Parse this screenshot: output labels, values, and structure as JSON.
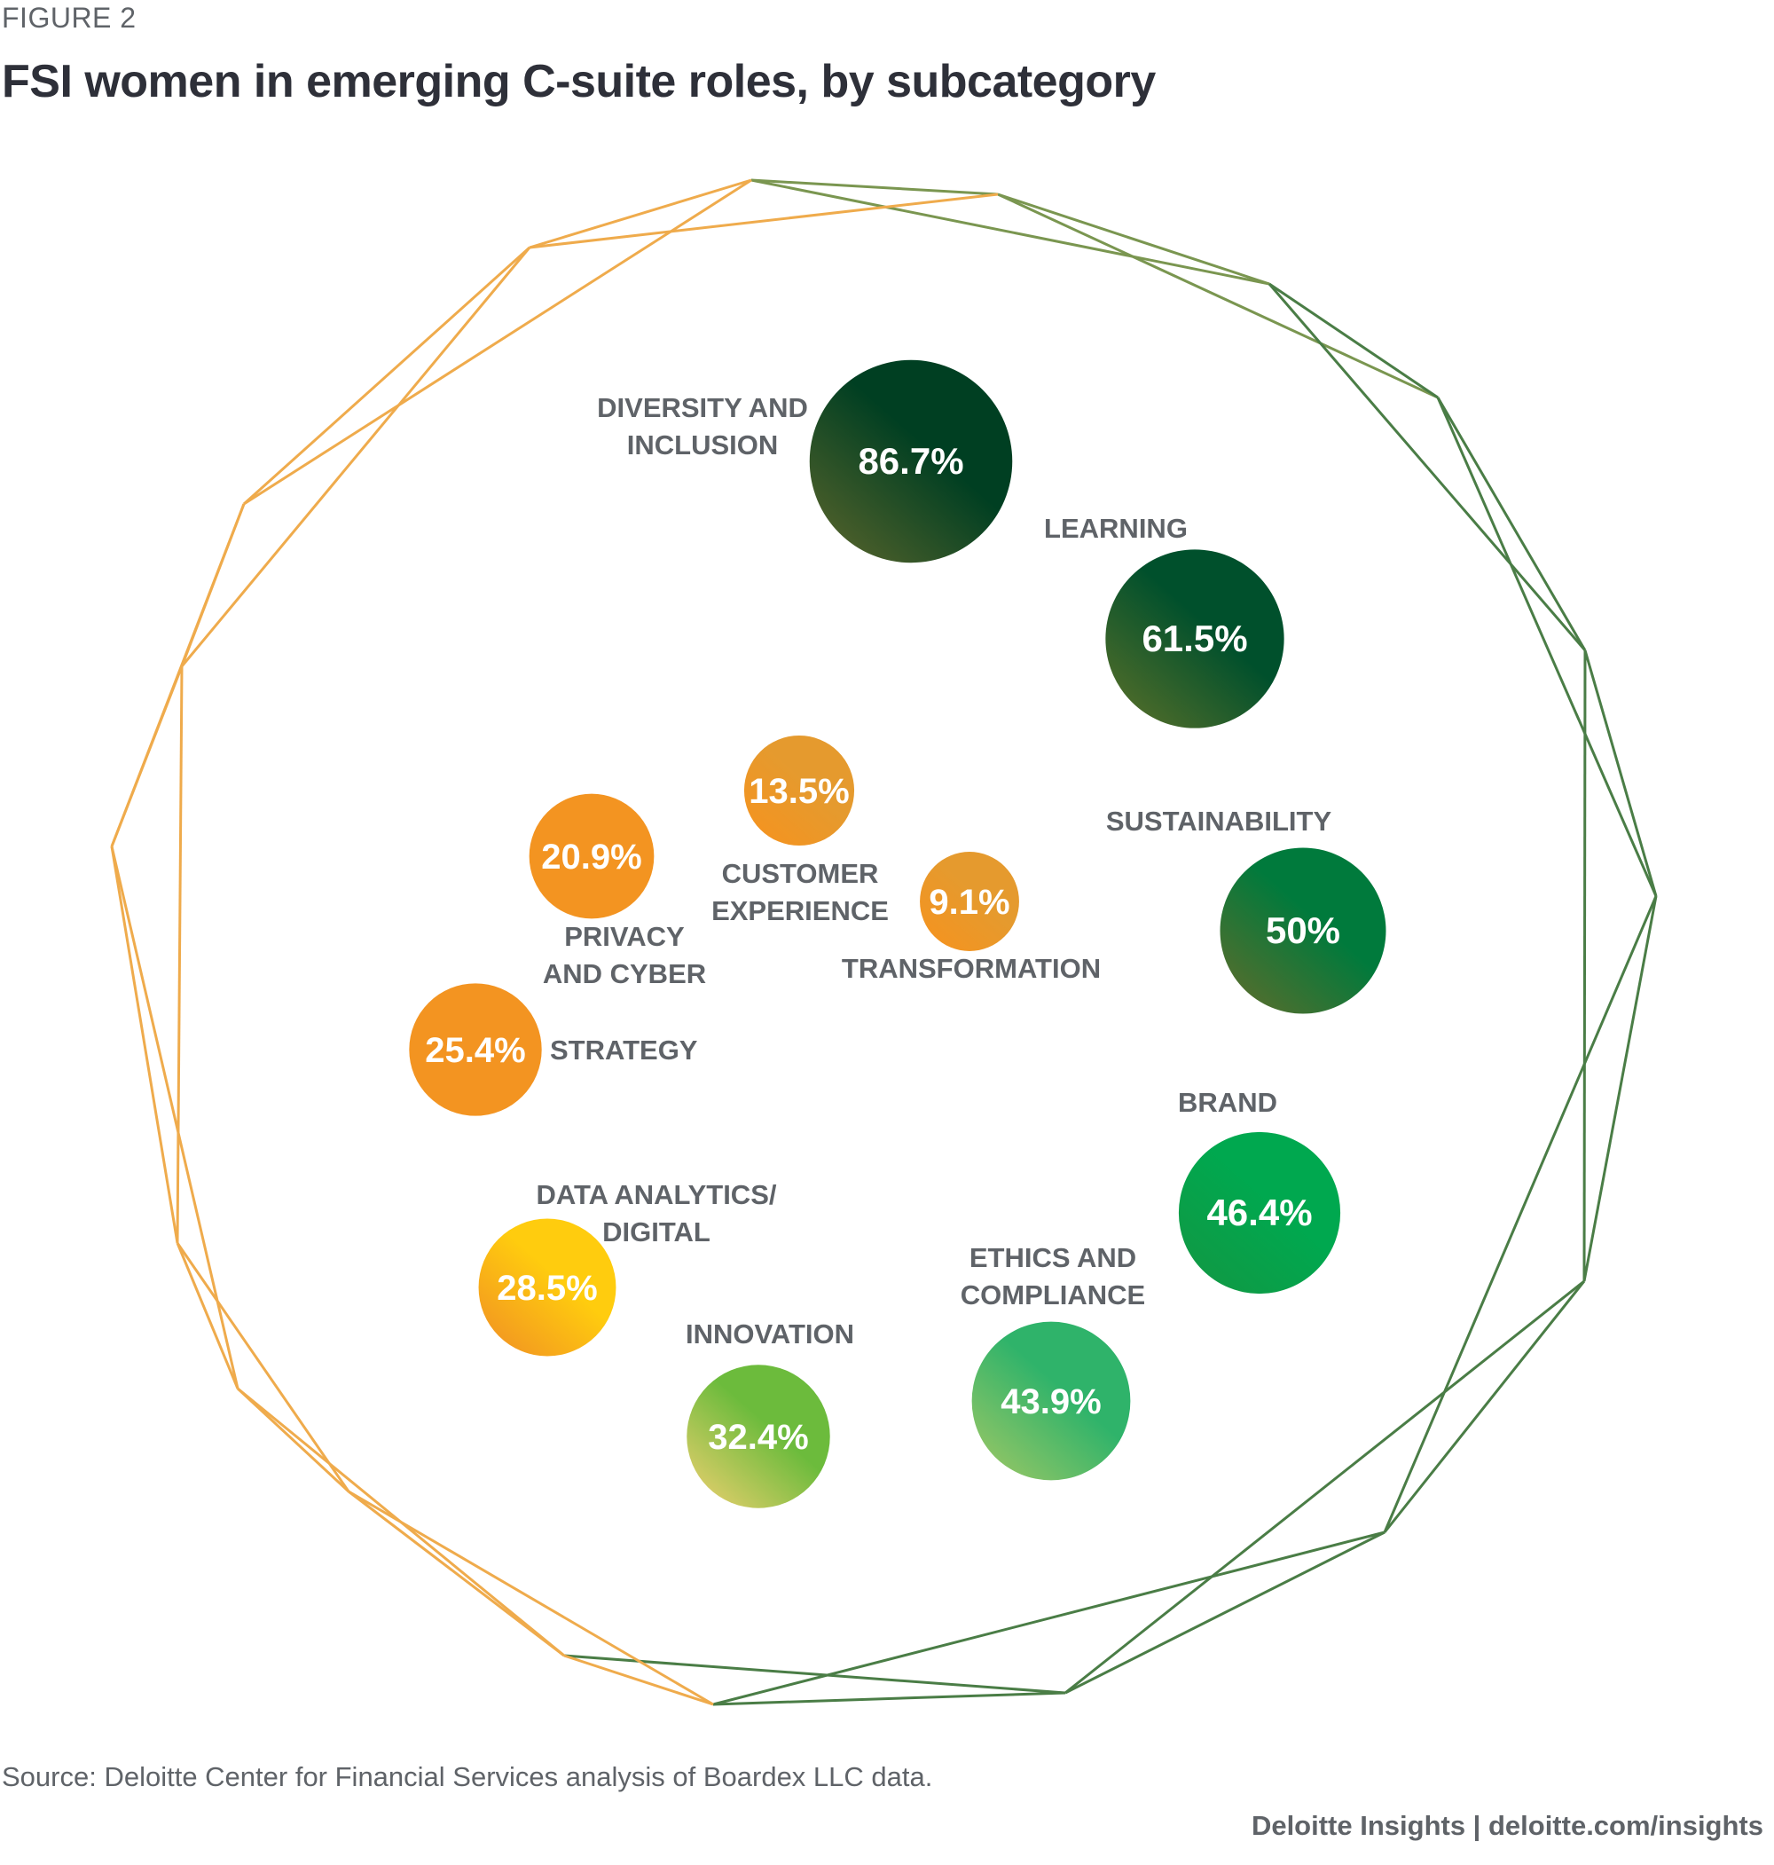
{
  "header": {
    "figure_label": "FIGURE 2",
    "title": "FSI women in emerging C-suite roles, by subcategory"
  },
  "footer": {
    "source": "Source: Deloitte Center for Financial Services analysis of Boardex LLC data.",
    "credit": "Deloitte Insights | deloitte.com/insights"
  },
  "chart_data": {
    "type": "bubble",
    "title": "FSI women in emerging C-suite roles, by subcategory",
    "unit": "%",
    "series": [
      {
        "name": "Diversity and inclusion",
        "label_lines": [
          "DIVERSITY AND",
          "INCLUSION"
        ],
        "value": 86.7,
        "display": "86.7%",
        "color_from": "#4a5e2a",
        "color_to": "#003f22"
      },
      {
        "name": "Learning",
        "label_lines": [
          "LEARNING"
        ],
        "value": 61.5,
        "display": "61.5%",
        "color_from": "#4a6a2a",
        "color_to": "#00502c"
      },
      {
        "name": "Sustainability",
        "label_lines": [
          "SUSTAINABILITY"
        ],
        "value": 50,
        "display": "50%",
        "color_from": "#4f6e2e",
        "color_to": "#007a3c"
      },
      {
        "name": "Brand",
        "label_lines": [
          "BRAND"
        ],
        "value": 46.4,
        "display": "46.4%",
        "color_from": "#0f9a45",
        "color_to": "#00a84f"
      },
      {
        "name": "Ethics and compliance",
        "label_lines": [
          "ETHICS AND",
          "COMPLIANCE"
        ],
        "value": 43.9,
        "display": "43.9%",
        "color_from": "#8bc466",
        "color_to": "#2fb36a"
      },
      {
        "name": "Innovation",
        "label_lines": [
          "INNOVATION"
        ],
        "value": 32.4,
        "display": "32.4%",
        "color_from": "#d6cc66",
        "color_to": "#6cbb3c"
      },
      {
        "name": "Data analytics/digital",
        "label_lines": [
          "DATA ANALYTICS/",
          "DIGITAL"
        ],
        "value": 28.5,
        "display": "28.5%",
        "color_from": "#f39a20",
        "color_to": "#ffcc0e"
      },
      {
        "name": "Strategy",
        "label_lines": [
          "STRATEGY"
        ],
        "value": 25.4,
        "display": "25.4%",
        "color_from": "#f39421",
        "color_to": "#f39421"
      },
      {
        "name": "Privacy and cyber",
        "label_lines": [
          "PRIVACY",
          "AND CYBER"
        ],
        "value": 20.9,
        "display": "20.9%",
        "color_from": "#f39421",
        "color_to": "#f39421"
      },
      {
        "name": "Customer experience",
        "label_lines": [
          "CUSTOMER",
          "EXPERIENCE"
        ],
        "value": 13.5,
        "display": "13.5%",
        "color_from": "#f39421",
        "color_to": "#e59a2e"
      },
      {
        "name": "Transformation",
        "label_lines": [
          "TRANSFORMATION"
        ],
        "value": 9.1,
        "display": "9.1%",
        "color_from": "#f39421",
        "color_to": "#e59a2e"
      }
    ]
  }
}
